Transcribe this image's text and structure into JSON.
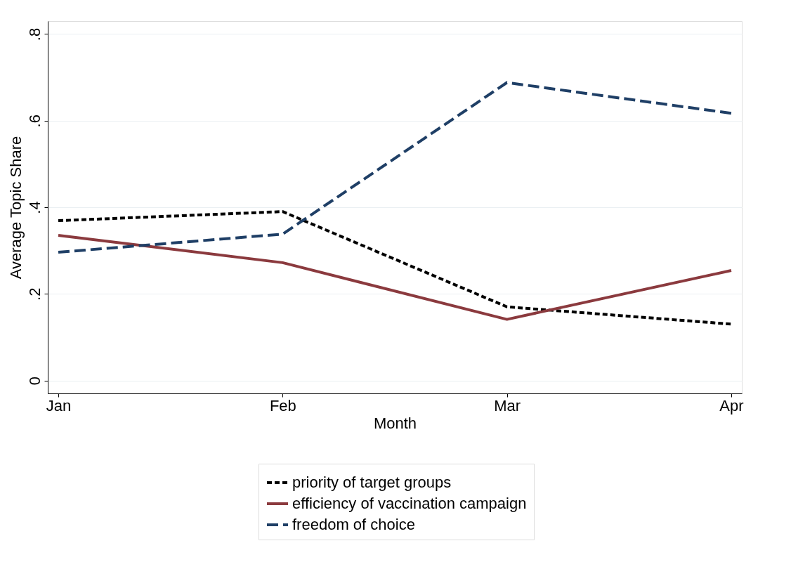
{
  "chart_data": {
    "type": "line",
    "xlabel": "Month",
    "ylabel": "Average Topic Share",
    "categories": [
      "Jan",
      "Feb",
      "Mar",
      "Apr"
    ],
    "series": [
      {
        "name": "priority of target groups",
        "color": "#000000",
        "line_style": "dotted",
        "values": [
          0.369,
          0.39,
          0.17,
          0.13
        ]
      },
      {
        "name": "efficiency of vaccination campaign",
        "color": "#8b3a3e",
        "line_style": "solid",
        "values": [
          0.335,
          0.272,
          0.141,
          0.254
        ]
      },
      {
        "name": "freedom of choice",
        "color": "#1f3f66",
        "line_style": "dashed",
        "values": [
          0.296,
          0.338,
          0.688,
          0.617
        ]
      }
    ],
    "ylim": [
      -0.03,
      0.83
    ],
    "yticks": [
      {
        "value": 0,
        "label": "0"
      },
      {
        "value": 0.2,
        "label": ".2"
      },
      {
        "value": 0.4,
        "label": ".4"
      },
      {
        "value": 0.6,
        "label": ".6"
      },
      {
        "value": 0.8,
        "label": ".8"
      }
    ],
    "grid": "y",
    "legend": "bottom",
    "marker": "none"
  }
}
